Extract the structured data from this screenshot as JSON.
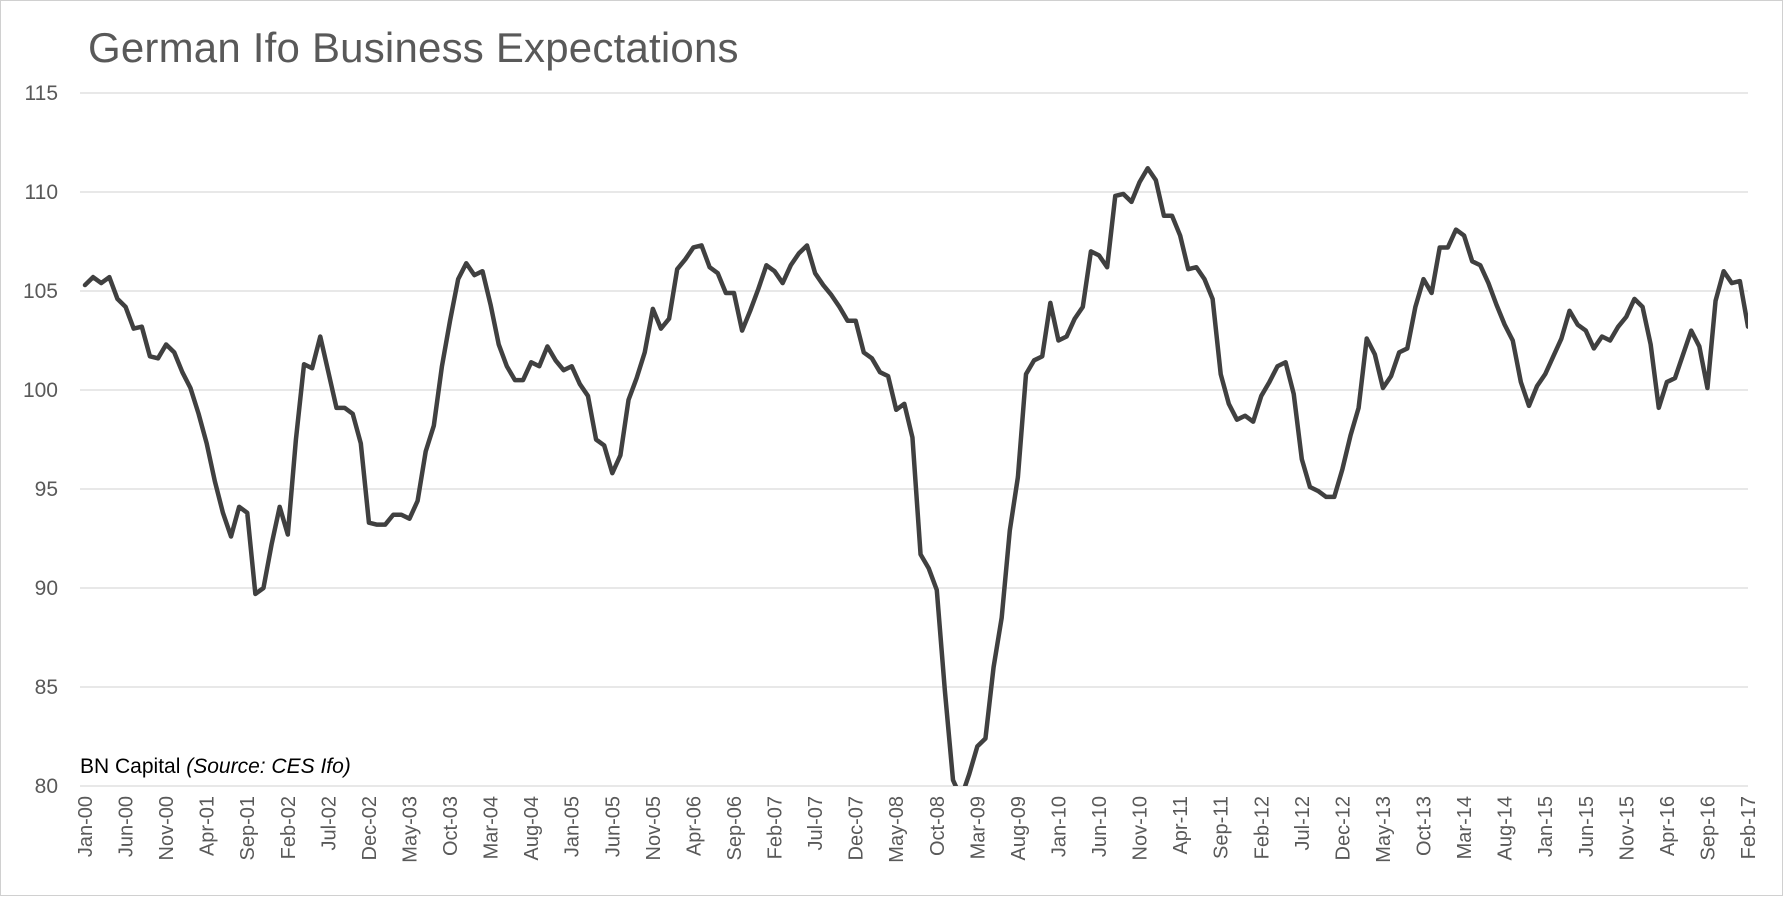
{
  "chart_data": {
    "type": "line",
    "title": "German Ifo Business Expectations",
    "xlabel": "",
    "ylabel": "",
    "ylim": [
      80,
      115
    ],
    "yticks": [
      "80",
      "85",
      "90",
      "95",
      "100",
      "105",
      "110",
      "115"
    ],
    "grid": true,
    "colors": {
      "line": "#404040",
      "grid": "#d9d9d9",
      "text": "#595959"
    },
    "x_tick_labels": [
      "Jan-00",
      "Jun-00",
      "Nov-00",
      "Apr-01",
      "Sep-01",
      "Feb-02",
      "Jul-02",
      "Dec-02",
      "May-03",
      "Oct-03",
      "Mar-04",
      "Aug-04",
      "Jan-05",
      "Jun-05",
      "Nov-05",
      "Apr-06",
      "Sep-06",
      "Feb-07",
      "Jul-07",
      "Dec-07",
      "May-08",
      "Oct-08",
      "Mar-09",
      "Aug-09",
      "Jan-10",
      "Jun-10",
      "Nov-10",
      "Apr-11",
      "Sep-11",
      "Feb-12",
      "Jul-12",
      "Dec-12",
      "May-13",
      "Oct-13",
      "Mar-14",
      "Aug-14",
      "Jan-15",
      "Jun-15",
      "Nov-15",
      "Apr-16",
      "Sep-16",
      "Feb-17"
    ],
    "start_month": "Jan-00",
    "series": [
      {
        "name": "",
        "values": [
          105.3,
          105.7,
          105.4,
          105.7,
          104.6,
          104.2,
          103.1,
          103.2,
          101.7,
          101.6,
          102.3,
          101.9,
          100.9,
          100.1,
          98.8,
          97.3,
          95.4,
          93.8,
          92.6,
          94.1,
          93.8,
          89.7,
          90.0,
          92.2,
          94.1,
          92.7,
          97.5,
          101.3,
          101.1,
          102.7,
          100.9,
          99.1,
          99.1,
          98.8,
          97.3,
          93.3,
          93.2,
          93.2,
          93.7,
          93.7,
          93.5,
          94.4,
          96.9,
          98.2,
          101.2,
          103.5,
          105.6,
          106.4,
          105.8,
          106.0,
          104.3,
          102.3,
          101.2,
          100.5,
          100.5,
          101.4,
          101.2,
          102.2,
          101.5,
          101.0,
          101.2,
          100.3,
          99.7,
          97.5,
          97.2,
          95.8,
          96.7,
          99.5,
          100.6,
          101.9,
          104.1,
          103.1,
          103.6,
          106.1,
          106.6,
          107.2,
          107.3,
          106.2,
          105.9,
          104.9,
          104.9,
          103.0,
          104.0,
          105.1,
          106.3,
          106.0,
          105.4,
          106.3,
          106.9,
          107.3,
          105.9,
          105.3,
          104.8,
          104.2,
          103.5,
          103.5,
          101.9,
          101.6,
          100.9,
          100.7,
          99.0,
          99.3,
          97.6,
          91.7,
          91.0,
          89.9,
          84.8,
          80.3,
          79.4,
          80.6,
          82.0,
          82.4,
          86.0,
          88.5,
          92.9,
          95.6,
          100.8,
          101.5,
          101.7,
          104.4,
          102.5,
          102.7,
          103.6,
          104.2,
          107.0,
          106.8,
          106.2,
          109.8,
          109.9,
          109.5,
          110.5,
          111.2,
          110.6,
          108.8,
          108.8,
          107.8,
          106.1,
          106.2,
          105.6,
          104.6,
          100.8,
          99.3,
          98.5,
          98.7,
          98.4,
          99.7,
          100.4,
          101.2,
          101.4,
          99.8,
          96.5,
          95.1,
          94.9,
          94.6,
          94.6,
          96.0,
          97.7,
          99.1,
          102.6,
          101.8,
          100.1,
          100.7,
          101.9,
          102.1,
          104.2,
          105.6,
          104.9,
          107.2,
          107.2,
          108.1,
          107.8,
          106.5,
          106.3,
          105.4,
          104.3,
          103.3,
          102.5,
          100.4,
          99.2,
          100.2,
          100.8,
          101.7,
          102.6,
          104.0,
          103.3,
          103.0,
          102.1,
          102.7,
          102.5,
          103.2,
          103.7,
          104.6,
          104.2,
          102.3,
          99.1,
          100.4,
          100.6,
          101.8,
          103.0,
          102.2,
          100.1,
          104.5,
          106.0,
          105.4,
          105.5,
          103.2
        ]
      }
    ]
  },
  "annotation": {
    "source_brand": "BN Capital",
    "source_note": "(Source: CES Ifo)"
  }
}
